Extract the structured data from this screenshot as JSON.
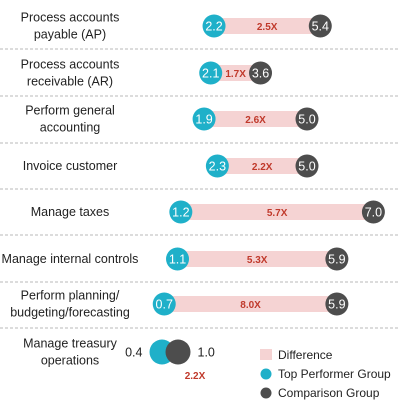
{
  "chart_data": {
    "type": "dumbbell",
    "xlim": [
      0,
      8
    ],
    "rows": [
      {
        "label": [
          "Process accounts",
          "payable (AP)"
        ],
        "top": 2.2,
        "comparison": 5.4,
        "ratio": "2.5X",
        "top_text": "2.2",
        "comp_text": "5.4"
      },
      {
        "label": [
          "Process accounts",
          "receivable (AR)"
        ],
        "top": 2.1,
        "comparison": 3.6,
        "ratio": "1.7X",
        "top_text": "2.1",
        "comp_text": "3.6"
      },
      {
        "label": [
          "Perform general",
          "accounting"
        ],
        "top": 1.9,
        "comparison": 5.0,
        "ratio": "2.6X",
        "top_text": "1.9",
        "comp_text": "5.0"
      },
      {
        "label": [
          "Invoice customer"
        ],
        "top": 2.3,
        "comparison": 5.0,
        "ratio": "2.2X",
        "top_text": "2.3",
        "comp_text": "5.0"
      },
      {
        "label": [
          "Manage taxes"
        ],
        "top": 1.2,
        "comparison": 7.0,
        "ratio": "5.7X",
        "top_text": "1.2",
        "comp_text": "7.0"
      },
      {
        "label": [
          "Manage internal controls"
        ],
        "top": 1.1,
        "comparison": 5.9,
        "ratio": "5.3X",
        "top_text": "1.1",
        "comp_text": "5.9"
      },
      {
        "label": [
          "Perform planning/",
          "budgeting/forecasting"
        ],
        "top": 0.7,
        "comparison": 5.9,
        "ratio": "8.0X",
        "top_text": "0.7",
        "comp_text": "5.9"
      },
      {
        "label": [
          "Manage treasury",
          "operations"
        ],
        "top": 0.4,
        "comparison": 1.0,
        "ratio": "2.2X",
        "top_text": "0.4",
        "comp_text": "1.0",
        "compact": true
      }
    ],
    "legend": [
      {
        "name": "Difference",
        "kind": "bar"
      },
      {
        "name": "Top Performer Group",
        "kind": "top"
      },
      {
        "name": "Comparison Group",
        "kind": "comparison"
      }
    ]
  },
  "colors": {
    "top": "#1fb0c9",
    "comparison": "#4d4d4d",
    "difference": "#f5d3d3",
    "ratio": "#c0392b",
    "separator": "#b9b9b9"
  }
}
